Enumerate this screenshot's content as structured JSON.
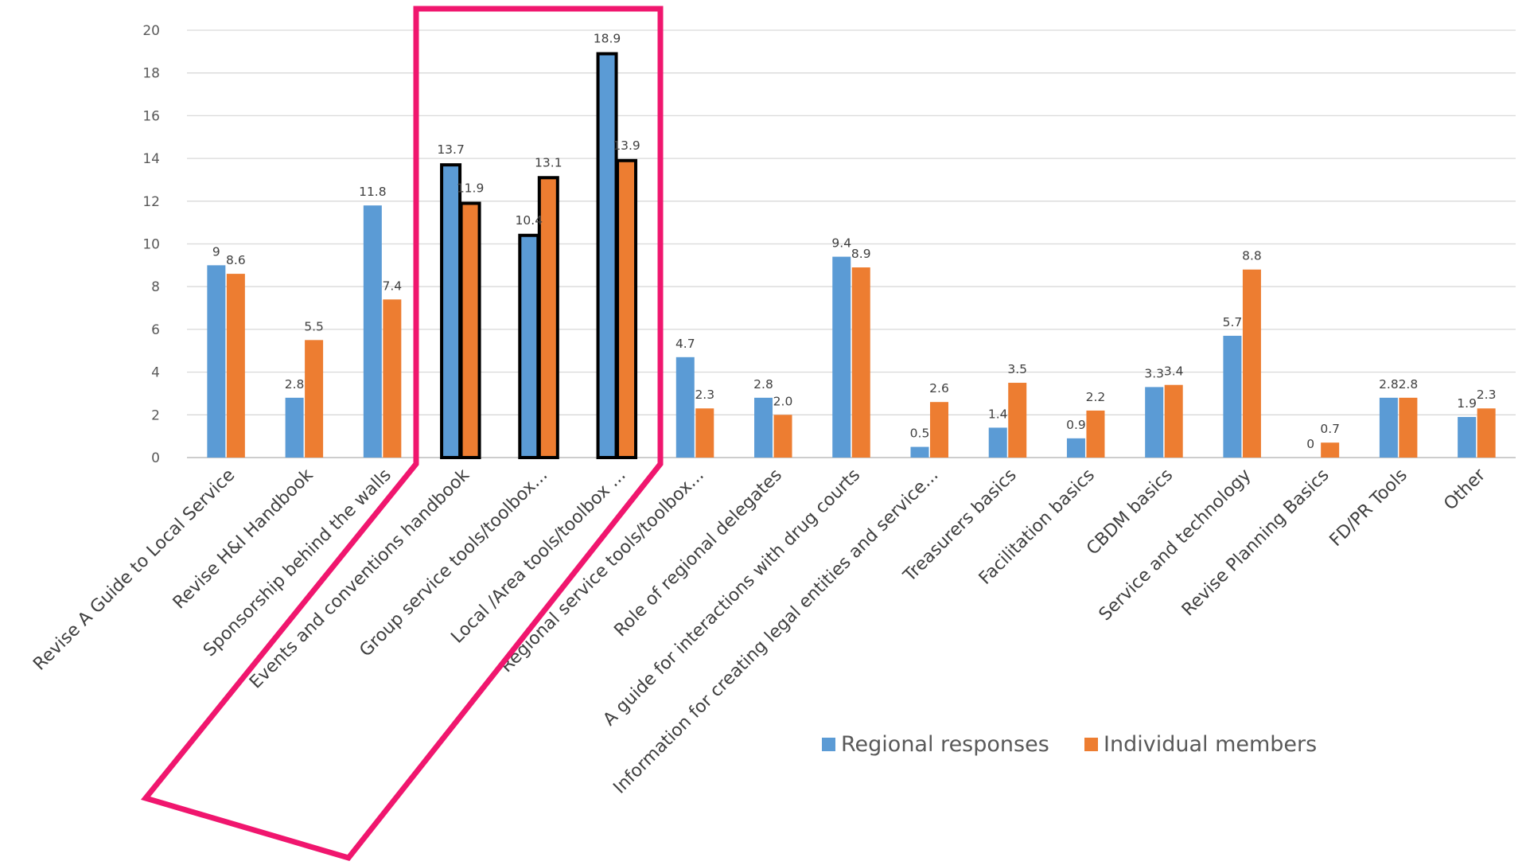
{
  "chart_data": {
    "type": "bar",
    "categories": [
      "Revise A Guide to Local Service",
      "Revise H&I Handbook",
      "Sponsorship behind the walls",
      "Events and conventions handbook",
      "Group service tools/toolbox...",
      "Local /Area tools/toolbox ...",
      "Regional service tools/toolbox...",
      "Role of regional delegates",
      "A guide for interactions with drug courts",
      "Information for creating legal entities and service...",
      "Treasurers basics",
      "Facilitation basics",
      "CBDM basics",
      "Service and technology",
      "Revise Planning Basics",
      "FD/PR Tools",
      "Other"
    ],
    "series": [
      {
        "name": "Regional responses",
        "color": "#5b9bd5",
        "values": [
          9,
          2.8,
          11.8,
          13.7,
          10.4,
          18.9,
          4.7,
          2.8,
          9.4,
          0.5,
          1.4,
          0.9,
          3.3,
          5.7,
          0,
          2.8,
          1.9
        ],
        "labels": [
          "9",
          "2.8",
          "11.8",
          "13.7",
          "10.4",
          "18.9",
          "4.7",
          "2.8",
          "9.4",
          "0.5",
          "1.4",
          "0.9",
          "3.3",
          "5.7",
          "0",
          "2.8",
          "1.9"
        ]
      },
      {
        "name": "Individual members",
        "color": "#ed7d31",
        "values": [
          8.6,
          5.5,
          7.4,
          11.9,
          13.1,
          13.9,
          2.3,
          2.0,
          8.9,
          2.6,
          3.5,
          2.2,
          3.4,
          8.8,
          0.7,
          2.8,
          2.3
        ],
        "labels": [
          "8.6",
          "5.5",
          "7.4",
          "11.9",
          "13.1",
          "13.9",
          "2.3",
          "2.0",
          "8.9",
          "2.6",
          "3.5",
          "2.2",
          "3.4",
          "8.8",
          "0.7",
          "2.8",
          "2.3"
        ]
      }
    ],
    "ylim": [
      0,
      20
    ],
    "y_ticks": [
      "0",
      "2",
      "4",
      "6",
      "8",
      "10",
      "12",
      "14",
      "16",
      "18",
      "20"
    ],
    "title": "",
    "xlabel": "",
    "ylabel": "",
    "grid": true,
    "legend": "bottom-right",
    "highlighted_categories": [
      3,
      4,
      5
    ],
    "highlight_color": "#f0166e"
  }
}
